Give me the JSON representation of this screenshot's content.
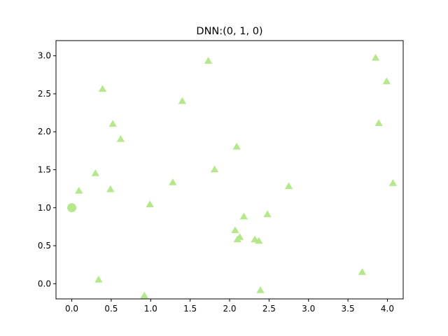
{
  "chart_data": {
    "type": "scatter",
    "title": "DNN:(0, 1, 0)",
    "xlabel": "",
    "ylabel": "",
    "xlim": [
      -0.2,
      4.2
    ],
    "ylim": [
      -0.2,
      3.2
    ],
    "xticks": [
      0.0,
      0.5,
      1.0,
      1.5,
      2.0,
      2.5,
      3.0,
      3.5,
      4.0
    ],
    "xtick_labels": [
      "0.0",
      "0.5",
      "1.0",
      "1.5",
      "2.0",
      "2.5",
      "3.0",
      "3.5",
      "4.0"
    ],
    "yticks": [
      0.0,
      0.5,
      1.0,
      1.5,
      2.0,
      2.5,
      3.0
    ],
    "ytick_labels": [
      "0.0",
      "0.5",
      "1.0",
      "1.5",
      "2.0",
      "2.5",
      "3.0"
    ],
    "grid": false,
    "color": "#b5e88c",
    "series": [
      {
        "marker": "circle",
        "points": [
          [
            0.0,
            1.0
          ]
        ]
      },
      {
        "marker": "triangle",
        "points": [
          [
            0.09,
            1.22
          ],
          [
            0.3,
            1.45
          ],
          [
            0.34,
            0.05
          ],
          [
            0.39,
            2.56
          ],
          [
            0.49,
            1.24
          ],
          [
            0.52,
            2.1
          ],
          [
            0.62,
            1.9
          ],
          [
            0.92,
            -0.16
          ],
          [
            0.99,
            1.04
          ],
          [
            1.28,
            1.33
          ],
          [
            1.4,
            2.4
          ],
          [
            1.73,
            2.93
          ],
          [
            1.81,
            1.5
          ],
          [
            2.07,
            0.7
          ],
          [
            2.09,
            1.8
          ],
          [
            2.1,
            0.58
          ],
          [
            2.13,
            0.61
          ],
          [
            2.18,
            0.88
          ],
          [
            2.32,
            0.58
          ],
          [
            2.37,
            0.56
          ],
          [
            2.39,
            -0.09
          ],
          [
            2.48,
            0.91
          ],
          [
            2.75,
            1.28
          ],
          [
            3.68,
            0.15
          ],
          [
            3.85,
            2.97
          ],
          [
            3.89,
            2.11
          ],
          [
            3.99,
            2.66
          ],
          [
            4.07,
            1.32
          ]
        ]
      }
    ]
  }
}
